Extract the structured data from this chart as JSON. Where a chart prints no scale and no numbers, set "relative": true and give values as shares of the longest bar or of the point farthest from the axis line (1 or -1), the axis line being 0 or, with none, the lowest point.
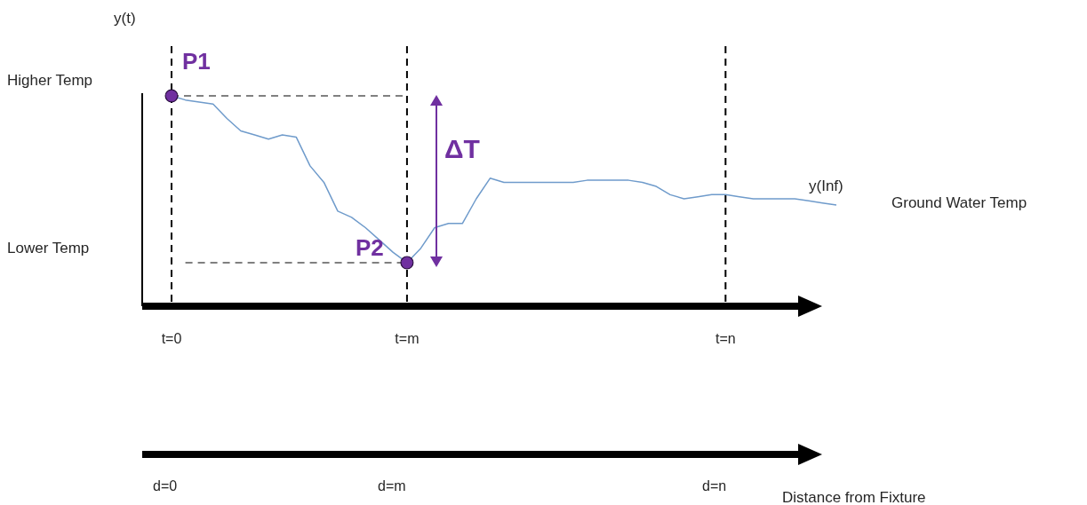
{
  "chart_data": {
    "type": "line",
    "relative": true,
    "ylabel": "y(t)",
    "marker": "none",
    "line_style": "solid",
    "categories": [
      "t=0",
      null,
      null,
      null,
      null,
      null,
      null,
      null,
      null,
      null,
      null,
      null,
      null,
      null,
      null,
      null,
      null,
      "t=m",
      null,
      null,
      null,
      null,
      null,
      null,
      null,
      null,
      null,
      null,
      null,
      null,
      null,
      null,
      null,
      null,
      null,
      null,
      null,
      null,
      null,
      null,
      "t=n",
      null,
      null,
      null,
      null,
      null,
      null,
      null,
      null
    ],
    "series": [
      {
        "color": "#6f9bcb",
        "values": [
          1.0,
          0.98,
          0.97,
          0.96,
          0.89,
          0.83,
          0.81,
          0.79,
          0.81,
          0.8,
          0.66,
          0.58,
          0.44,
          0.41,
          0.36,
          0.3,
          0.24,
          0.19,
          0.26,
          0.36,
          0.38,
          0.38,
          0.5,
          0.6,
          0.58,
          0.58,
          0.58,
          0.58,
          0.58,
          0.58,
          0.59,
          0.59,
          0.59,
          0.59,
          0.58,
          0.56,
          0.52,
          0.5,
          0.51,
          0.52,
          0.52,
          0.51,
          0.5,
          0.5,
          0.5,
          0.5,
          0.49,
          0.48,
          0.47
        ]
      },
      {
        "color": "#808080",
        "line_style": "dashed",
        "values": [
          1.0,
          null,
          null,
          null,
          null,
          null,
          null,
          null,
          null,
          null,
          null,
          null,
          null,
          null,
          null,
          null,
          null,
          1.0,
          null,
          null,
          null,
          null,
          null,
          null,
          null,
          null,
          null,
          null,
          null,
          null,
          null,
          null,
          null,
          null,
          null,
          null,
          null,
          null,
          null,
          null,
          null,
          null,
          null,
          null,
          null,
          null,
          null,
          null,
          null
        ]
      },
      {
        "color": "#808080",
        "line_style": "dashed",
        "values": [
          null,
          0.19,
          null,
          null,
          null,
          null,
          null,
          null,
          null,
          null,
          null,
          null,
          null,
          null,
          null,
          null,
          null,
          0.19,
          null,
          null,
          null,
          null,
          null,
          null,
          null,
          null,
          null,
          null,
          null,
          null,
          null,
          null,
          null,
          null,
          null,
          null,
          null,
          null,
          null,
          null,
          null,
          null,
          null,
          null,
          null,
          null,
          null,
          null,
          null
        ]
      },
      {
        "type": "scatter",
        "color": "#7030a0",
        "marker": "circle",
        "values": [
          1.0,
          null,
          null,
          null,
          null,
          null,
          null,
          null,
          null,
          null,
          null,
          null,
          null,
          null,
          null,
          null,
          null,
          0.19,
          null,
          null,
          null,
          null,
          null,
          null,
          null,
          null,
          null,
          null,
          null,
          null,
          null,
          null,
          null,
          null,
          null,
          null,
          null,
          null,
          null,
          null,
          null,
          null,
          null,
          null,
          null,
          null,
          null,
          null,
          null
        ]
      }
    ],
    "ref_lines": [
      {
        "axis": "x",
        "value": "t=0",
        "color": "#000000",
        "line_style": "dashed"
      },
      {
        "axis": "x",
        "value": "t=m",
        "color": "#000000",
        "line_style": "dashed"
      },
      {
        "axis": "x",
        "value": "t=n",
        "color": "#000000",
        "line_style": "dashed"
      }
    ],
    "annotations": [
      "Higher Temp",
      "Lower Temp",
      {
        "text": "P1",
        "x": "t=0",
        "y": 1.0
      },
      {
        "text": "P2",
        "x": "t=m",
        "y": 0.19
      },
      "ΔT",
      "y(Inf)",
      "Ground Water Temp",
      "d=0",
      "d=m",
      "d=n",
      "Distance from Fixture"
    ]
  }
}
